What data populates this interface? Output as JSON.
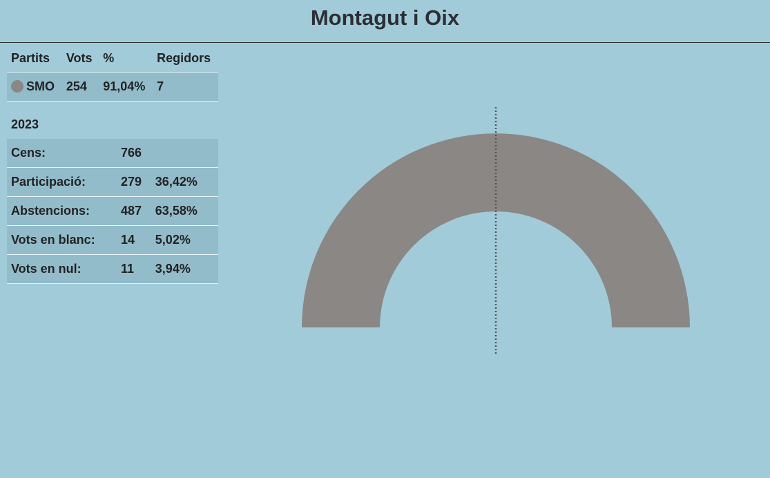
{
  "header": {
    "title": "Montagut i Oix"
  },
  "parties": {
    "columns": [
      "Partits",
      "Vots",
      "%",
      "Regidors"
    ],
    "rows": [
      {
        "name": "SMO",
        "color": "#8a8784",
        "votes": 254,
        "percent": "91,04%",
        "seats": 7
      }
    ]
  },
  "summary": {
    "year": "2023",
    "rows": [
      [
        "Cens:",
        "766",
        ""
      ],
      [
        "Participació:",
        "279",
        "36,42%"
      ],
      [
        "Abstencions:",
        "487",
        "63,58%"
      ],
      [
        "Vots en blanc:",
        "14",
        "5,02%"
      ],
      [
        "Vots en nul:",
        "11",
        "3,94%"
      ]
    ]
  }
}
